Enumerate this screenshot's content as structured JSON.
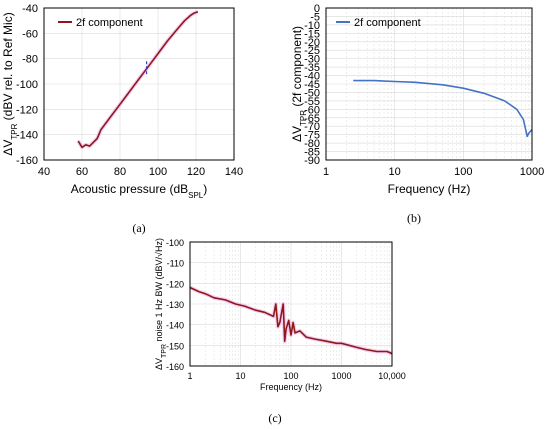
{
  "chart_data": [
    {
      "id": "a",
      "type": "line",
      "caption": "(a)",
      "xlabel": "Acoustic pressure (dB",
      "xlabel_sub": "SPL",
      "xlabel_end": ")",
      "ylabel": "ΔV",
      "ylabel_sub": "TPR",
      "ylabel_end": " (dBV rel. to Ref Mic)",
      "xlim": [
        40,
        140
      ],
      "ylim": [
        -160,
        -40
      ],
      "xticks": [
        "40",
        "60",
        "80",
        "100",
        "120",
        "140"
      ],
      "yticks": [
        "-40",
        "-60",
        "-80",
        "-100",
        "-120",
        "-140",
        "-160"
      ],
      "legend": "top-left",
      "grid": true,
      "series": [
        {
          "name": "2f component",
          "color": "#8b1a1a",
          "x": [
            58,
            60,
            62,
            64,
            66,
            68,
            70,
            75,
            80,
            85,
            90,
            95,
            100,
            105,
            110,
            114,
            117,
            119,
            121
          ],
          "y": [
            -145,
            -150,
            -148,
            -149,
            -146,
            -143,
            -136,
            -126,
            -116,
            -106,
            -96,
            -86,
            -76,
            -66,
            -57,
            -50,
            -46,
            -44,
            -43
          ]
        }
      ],
      "marker_line": {
        "x": 94,
        "y": [
          -82,
          -94
        ],
        "color": "#3b3bd0"
      }
    },
    {
      "id": "b",
      "type": "line",
      "caption": "(b)",
      "xlabel": "Frequency (Hz)",
      "ylabel": "ΔV",
      "ylabel_sub": "TPR",
      "ylabel_end": " (2f component)",
      "xscale": "log",
      "xlim": [
        1,
        1000
      ],
      "ylim": [
        -90,
        0
      ],
      "xticks": [
        "1",
        "10",
        "100",
        "1000"
      ],
      "yticks": [
        "0",
        "-5",
        "-10",
        "-15",
        "-20",
        "-25",
        "-30",
        "-35",
        "-40",
        "-45",
        "-50",
        "-55",
        "-60",
        "-65",
        "-70",
        "-75",
        "-80",
        "-85",
        "-90"
      ],
      "legend": "top-left",
      "grid": true,
      "series": [
        {
          "name": "2f component",
          "color": "#4472c4",
          "x": [
            2.5,
            5,
            10,
            20,
            50,
            100,
            200,
            400,
            600,
            750,
            850,
            900,
            1000
          ],
          "y": [
            -43,
            -43,
            -43.5,
            -44,
            -45.5,
            -47.5,
            -50.5,
            -55,
            -60,
            -66,
            -76,
            -74,
            -72
          ]
        }
      ]
    },
    {
      "id": "c",
      "type": "line",
      "caption": "(c)",
      "xlabel": "Frequency (Hz)",
      "ylabel": "ΔV",
      "ylabel_sub": "TPR",
      "ylabel_end": " noise 1 Hz BW (dBV/√Hz)",
      "xscale": "log",
      "xlim": [
        1,
        10000
      ],
      "ylim": [
        -160,
        -100
      ],
      "xticks": [
        "1",
        "10",
        "100",
        "1000",
        "10,000"
      ],
      "yticks": [
        "-100",
        "-110",
        "-120",
        "-130",
        "-140",
        "-150",
        "-160"
      ],
      "grid": true,
      "series": [
        {
          "name": "",
          "color": "#8b1a1a",
          "x": [
            1,
            1.5,
            2,
            3,
            5,
            8,
            12,
            20,
            30,
            45,
            50,
            55,
            60,
            70,
            75,
            80,
            90,
            100,
            110,
            120,
            150,
            200,
            300,
            500,
            800,
            1000,
            2000,
            3000,
            5000,
            8000,
            10000
          ],
          "y": [
            -122,
            -124,
            -125,
            -127,
            -128,
            -130,
            -131,
            -133,
            -134,
            -136,
            -130,
            -141,
            -139,
            -130,
            -148,
            -142,
            -138,
            -145,
            -139,
            -144,
            -143,
            -146,
            -147,
            -148,
            -149,
            -149,
            -151,
            -152,
            -153,
            -153,
            -154
          ]
        }
      ]
    }
  ]
}
